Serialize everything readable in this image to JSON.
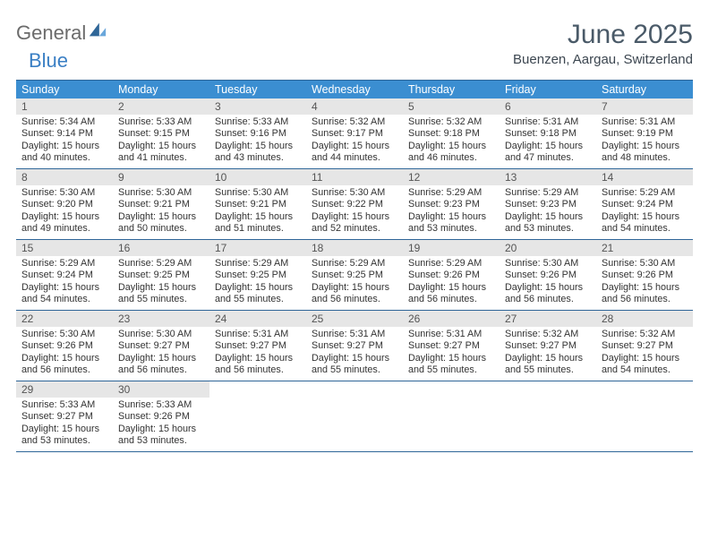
{
  "brand": {
    "part1": "General",
    "part2": "Blue"
  },
  "title": {
    "month": "June 2025",
    "location": "Buenzen, Aargau, Switzerland"
  },
  "colors": {
    "header_bar": "#3b8ed1",
    "rule": "#2f6698",
    "day_num_bg": "#e6e6e6",
    "brand_gray": "#6b6b6b",
    "brand_blue": "#3a7fc4",
    "title_color": "#4a5a68"
  },
  "weekdays": [
    "Sunday",
    "Monday",
    "Tuesday",
    "Wednesday",
    "Thursday",
    "Friday",
    "Saturday"
  ],
  "weeks": [
    [
      {
        "n": "1",
        "sr": "5:34 AM",
        "ss": "9:14 PM",
        "dl": "15 hours and 40 minutes."
      },
      {
        "n": "2",
        "sr": "5:33 AM",
        "ss": "9:15 PM",
        "dl": "15 hours and 41 minutes."
      },
      {
        "n": "3",
        "sr": "5:33 AM",
        "ss": "9:16 PM",
        "dl": "15 hours and 43 minutes."
      },
      {
        "n": "4",
        "sr": "5:32 AM",
        "ss": "9:17 PM",
        "dl": "15 hours and 44 minutes."
      },
      {
        "n": "5",
        "sr": "5:32 AM",
        "ss": "9:18 PM",
        "dl": "15 hours and 46 minutes."
      },
      {
        "n": "6",
        "sr": "5:31 AM",
        "ss": "9:18 PM",
        "dl": "15 hours and 47 minutes."
      },
      {
        "n": "7",
        "sr": "5:31 AM",
        "ss": "9:19 PM",
        "dl": "15 hours and 48 minutes."
      }
    ],
    [
      {
        "n": "8",
        "sr": "5:30 AM",
        "ss": "9:20 PM",
        "dl": "15 hours and 49 minutes."
      },
      {
        "n": "9",
        "sr": "5:30 AM",
        "ss": "9:21 PM",
        "dl": "15 hours and 50 minutes."
      },
      {
        "n": "10",
        "sr": "5:30 AM",
        "ss": "9:21 PM",
        "dl": "15 hours and 51 minutes."
      },
      {
        "n": "11",
        "sr": "5:30 AM",
        "ss": "9:22 PM",
        "dl": "15 hours and 52 minutes."
      },
      {
        "n": "12",
        "sr": "5:29 AM",
        "ss": "9:23 PM",
        "dl": "15 hours and 53 minutes."
      },
      {
        "n": "13",
        "sr": "5:29 AM",
        "ss": "9:23 PM",
        "dl": "15 hours and 53 minutes."
      },
      {
        "n": "14",
        "sr": "5:29 AM",
        "ss": "9:24 PM",
        "dl": "15 hours and 54 minutes."
      }
    ],
    [
      {
        "n": "15",
        "sr": "5:29 AM",
        "ss": "9:24 PM",
        "dl": "15 hours and 54 minutes."
      },
      {
        "n": "16",
        "sr": "5:29 AM",
        "ss": "9:25 PM",
        "dl": "15 hours and 55 minutes."
      },
      {
        "n": "17",
        "sr": "5:29 AM",
        "ss": "9:25 PM",
        "dl": "15 hours and 55 minutes."
      },
      {
        "n": "18",
        "sr": "5:29 AM",
        "ss": "9:25 PM",
        "dl": "15 hours and 56 minutes."
      },
      {
        "n": "19",
        "sr": "5:29 AM",
        "ss": "9:26 PM",
        "dl": "15 hours and 56 minutes."
      },
      {
        "n": "20",
        "sr": "5:30 AM",
        "ss": "9:26 PM",
        "dl": "15 hours and 56 minutes."
      },
      {
        "n": "21",
        "sr": "5:30 AM",
        "ss": "9:26 PM",
        "dl": "15 hours and 56 minutes."
      }
    ],
    [
      {
        "n": "22",
        "sr": "5:30 AM",
        "ss": "9:26 PM",
        "dl": "15 hours and 56 minutes."
      },
      {
        "n": "23",
        "sr": "5:30 AM",
        "ss": "9:27 PM",
        "dl": "15 hours and 56 minutes."
      },
      {
        "n": "24",
        "sr": "5:31 AM",
        "ss": "9:27 PM",
        "dl": "15 hours and 56 minutes."
      },
      {
        "n": "25",
        "sr": "5:31 AM",
        "ss": "9:27 PM",
        "dl": "15 hours and 55 minutes."
      },
      {
        "n": "26",
        "sr": "5:31 AM",
        "ss": "9:27 PM",
        "dl": "15 hours and 55 minutes."
      },
      {
        "n": "27",
        "sr": "5:32 AM",
        "ss": "9:27 PM",
        "dl": "15 hours and 55 minutes."
      },
      {
        "n": "28",
        "sr": "5:32 AM",
        "ss": "9:27 PM",
        "dl": "15 hours and 54 minutes."
      }
    ],
    [
      {
        "n": "29",
        "sr": "5:33 AM",
        "ss": "9:27 PM",
        "dl": "15 hours and 53 minutes."
      },
      {
        "n": "30",
        "sr": "5:33 AM",
        "ss": "9:26 PM",
        "dl": "15 hours and 53 minutes."
      },
      null,
      null,
      null,
      null,
      null
    ]
  ],
  "labels": {
    "sunrise": "Sunrise: ",
    "sunset": "Sunset: ",
    "daylight": "Daylight: "
  }
}
